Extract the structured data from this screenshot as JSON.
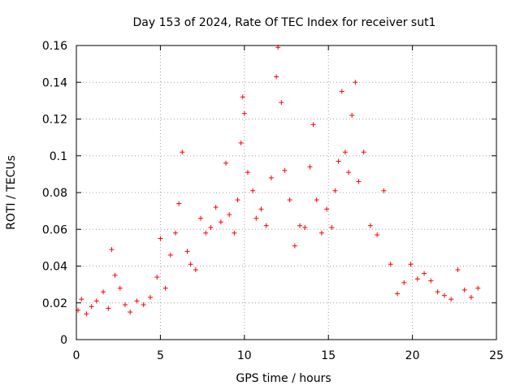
{
  "chart_data": {
    "type": "scatter",
    "title": "Day 153 of 2024, Rate Of TEC Index for receiver sut1",
    "xlabel": "GPS time / hours",
    "ylabel": "ROTI / TECUs",
    "xlim": [
      0,
      25
    ],
    "ylim": [
      0,
      0.16
    ],
    "xticks": [
      "0",
      "5",
      "10",
      "15",
      "20",
      "25"
    ],
    "yticks": [
      "0",
      "0.02",
      "0.04",
      "0.06",
      "0.08",
      "0.1",
      "0.12",
      "0.14",
      "0.16"
    ],
    "grid": true,
    "marker": "+",
    "color": "#ff0000",
    "series": [
      {
        "x": [
          0.1,
          0.3,
          0.6,
          0.9,
          1.2,
          1.6,
          1.9,
          2.1,
          2.3,
          2.6,
          2.9,
          3.2,
          3.6,
          4.0,
          4.4,
          4.8,
          5.0,
          5.3,
          5.6,
          5.9,
          6.1,
          6.3,
          6.6,
          6.8,
          7.1,
          7.4,
          7.7,
          8.0,
          8.3,
          8.6,
          8.9,
          9.1,
          9.4,
          9.6,
          9.8,
          9.9,
          10.0,
          10.2,
          10.5,
          10.7,
          11.0,
          11.3,
          11.6,
          11.9,
          12.0,
          12.2,
          12.4,
          12.7,
          13.0,
          13.3,
          13.6,
          13.9,
          14.1,
          14.3,
          14.6,
          14.9,
          15.2,
          15.4,
          15.6,
          15.8,
          16.0,
          16.2,
          16.4,
          16.6,
          16.8,
          17.1,
          17.5,
          17.9,
          18.3,
          18.7,
          19.1,
          19.5,
          19.9,
          20.3,
          20.7,
          21.1,
          21.5,
          21.9,
          22.3,
          22.7,
          23.1,
          23.5,
          23.9
        ],
        "y": [
          0.016,
          0.022,
          0.014,
          0.018,
          0.021,
          0.026,
          0.017,
          0.049,
          0.035,
          0.028,
          0.019,
          0.015,
          0.021,
          0.019,
          0.023,
          0.034,
          0.055,
          0.028,
          0.046,
          0.058,
          0.074,
          0.102,
          0.048,
          0.041,
          0.038,
          0.066,
          0.058,
          0.061,
          0.072,
          0.064,
          0.096,
          0.068,
          0.058,
          0.076,
          0.107,
          0.132,
          0.123,
          0.091,
          0.081,
          0.066,
          0.071,
          0.062,
          0.088,
          0.143,
          0.159,
          0.129,
          0.092,
          0.076,
          0.051,
          0.062,
          0.061,
          0.094,
          0.117,
          0.076,
          0.058,
          0.071,
          0.061,
          0.081,
          0.097,
          0.135,
          0.102,
          0.091,
          0.122,
          0.14,
          0.086,
          0.102,
          0.062,
          0.057,
          0.081,
          0.041,
          0.025,
          0.031,
          0.041,
          0.033,
          0.036,
          0.032,
          0.026,
          0.024,
          0.022,
          0.038,
          0.027,
          0.023,
          0.028
        ]
      }
    ]
  }
}
